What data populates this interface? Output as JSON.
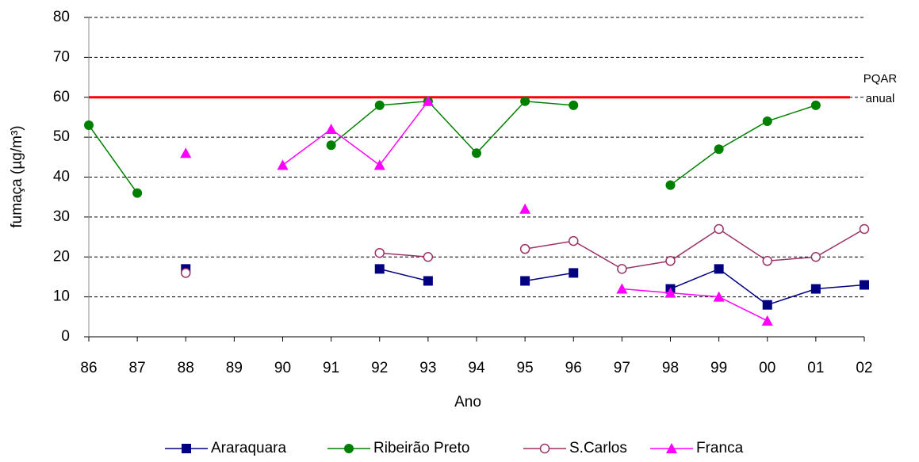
{
  "chart_data": {
    "type": "line",
    "xlabel": "Ano",
    "ylabel": "fumaça (µg/m³)",
    "categories": [
      "86",
      "87",
      "88",
      "89",
      "90",
      "91",
      "92",
      "93",
      "94",
      "95",
      "96",
      "97",
      "98",
      "99",
      "00",
      "01",
      "02"
    ],
    "series": [
      {
        "name": "Araraquara",
        "color": "#000080",
        "marker": "square",
        "values": [
          null,
          null,
          17,
          null,
          null,
          null,
          17,
          14,
          null,
          14,
          16,
          null,
          12,
          17,
          8,
          12,
          13
        ]
      },
      {
        "name": "Ribeirão Preto",
        "color": "#008000",
        "marker": "circle",
        "values": [
          53,
          36,
          null,
          null,
          null,
          48,
          58,
          59,
          46,
          59,
          58,
          null,
          38,
          47,
          54,
          58,
          null
        ]
      },
      {
        "name": "S.Carlos",
        "color": "#993366",
        "marker": "open-circle",
        "values": [
          null,
          null,
          16,
          null,
          null,
          null,
          21,
          20,
          null,
          22,
          24,
          17,
          19,
          27,
          19,
          20,
          27
        ]
      },
      {
        "name": "Franca",
        "color": "#FF00FF",
        "marker": "triangle",
        "values": [
          null,
          null,
          46,
          null,
          43,
          52,
          43,
          59,
          null,
          32,
          null,
          12,
          11,
          10,
          4,
          null,
          null
        ]
      }
    ],
    "reference_line": {
      "value": 60,
      "color": "#FF0000",
      "label": [
        "PQAR",
        "anual"
      ]
    },
    "ylim": [
      0,
      80
    ],
    "yticks": [
      0,
      10,
      20,
      30,
      40,
      50,
      60,
      70,
      80
    ],
    "grid": true,
    "legend": "bottom"
  }
}
